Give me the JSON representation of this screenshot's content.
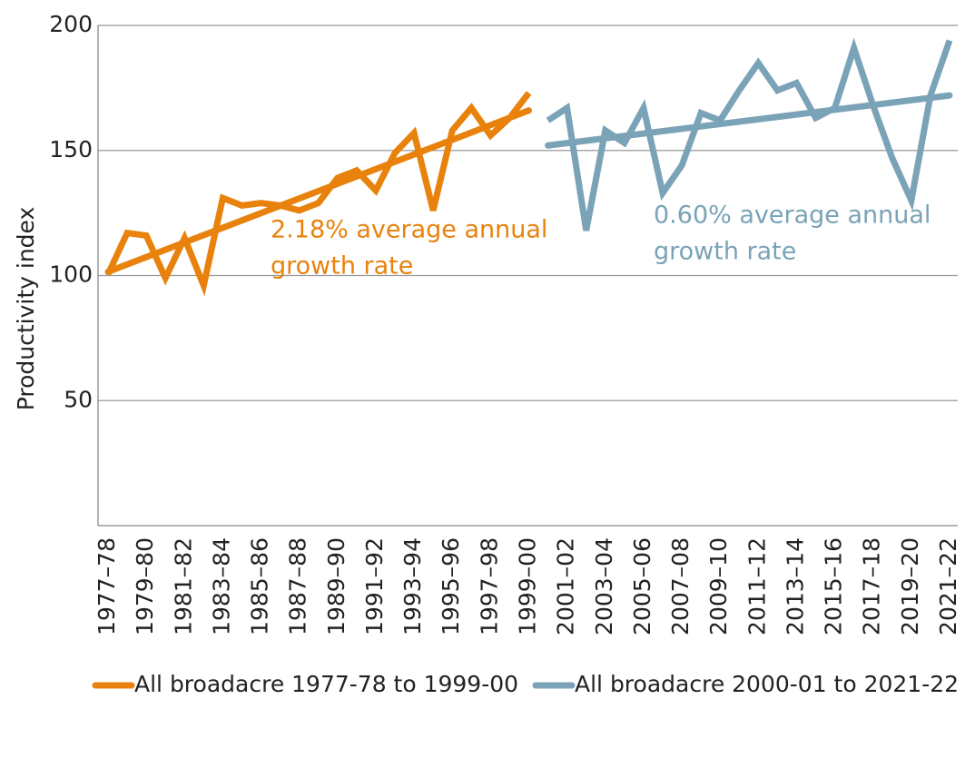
{
  "chart_data": {
    "type": "line",
    "y_label": "Productivity index",
    "categories": [
      "1977–78",
      null,
      "1979–80",
      null,
      "1981–82",
      null,
      "1983–84",
      null,
      "1985–86",
      null,
      "1987–88",
      null,
      "1989–90",
      null,
      "1991–92",
      null,
      "1993–94",
      null,
      "1995–96",
      null,
      "1997–98",
      null,
      "1999–00",
      null,
      "2001–02",
      null,
      "2003–04",
      null,
      "2005–06",
      null,
      "2007–08",
      null,
      "2009–10",
      null,
      "2011–12",
      null,
      "2013–14",
      null,
      "2015–16",
      null,
      "2017–18",
      null,
      "2019–20",
      null,
      "2021–22"
    ],
    "series": [
      {
        "name": "All broadacre 1977-78 to 1999-00",
        "color": "#e8820c",
        "values": [
          100.5,
          117,
          116,
          99,
          115,
          96,
          131,
          128,
          129,
          128,
          126,
          129,
          139,
          142,
          134,
          149,
          157,
          126,
          158,
          167,
          156,
          163,
          173,
          null,
          null,
          null,
          null,
          null,
          null,
          null,
          null,
          null,
          null,
          null,
          null,
          null,
          null,
          null,
          null,
          null,
          null,
          null,
          null,
          null,
          null
        ],
        "trend": {
          "values": [
            101.5,
            166
          ],
          "annotation": [
            "2.18% average annual",
            "growth rate"
          ]
        }
      },
      {
        "name": "All broadacre 2000-01 to 2021-22",
        "color": "#7aa3b8",
        "values": [
          null,
          null,
          null,
          null,
          null,
          null,
          null,
          null,
          null,
          null,
          null,
          null,
          null,
          null,
          null,
          null,
          null,
          null,
          null,
          null,
          null,
          null,
          null,
          162,
          167,
          118,
          158,
          153,
          167,
          133,
          144,
          165,
          162,
          174,
          185,
          174,
          177,
          163,
          167,
          191,
          168,
          147,
          130,
          172,
          194
        ],
        "trend": {
          "values": [
            152,
            172
          ],
          "annotation": [
            "0.60% average annual",
            "growth rate"
          ]
        }
      }
    ],
    "ylim": [
      0,
      200
    ],
    "yticks": [
      50,
      100,
      150,
      200
    ],
    "grid": true
  }
}
